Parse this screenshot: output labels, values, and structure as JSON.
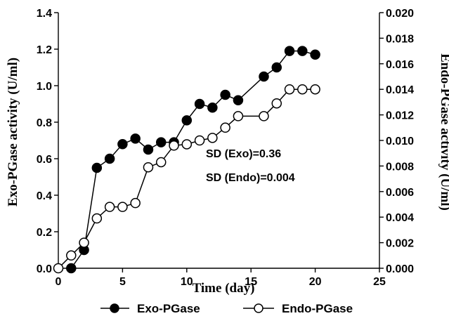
{
  "chart_data": {
    "type": "line",
    "xlabel": "Time (day)",
    "ylabel": "Exo-PGase activity (U/ml)",
    "y2label": "Endo-PGase activity (U/ml)",
    "xlim": [
      0,
      25
    ],
    "ylim": [
      0.0,
      1.4
    ],
    "y2lim": [
      0.0,
      0.02
    ],
    "x_ticks": [
      "0",
      "5",
      "10",
      "15",
      "20",
      "25"
    ],
    "y_ticks": [
      "0.0",
      "0.2",
      "0.4",
      "0.6",
      "0.8",
      "1.0",
      "1.2",
      "1.4"
    ],
    "y2_ticks": [
      "0.000",
      "0.002",
      "0.004",
      "0.006",
      "0.008",
      "0.010",
      "0.012",
      "0.014",
      "0.016",
      "0.018",
      "0.020"
    ],
    "grid": false,
    "legend_position": "bottom",
    "annotations": [
      "SD (Exo)=0.36",
      "SD (Endo)=0.004"
    ],
    "series": [
      {
        "name": "Exo-PGase",
        "axis": "left",
        "marker": "filled-circle",
        "color": "#000000",
        "points": [
          [
            1,
            0.0
          ],
          [
            2,
            0.1
          ],
          [
            3,
            0.55
          ],
          [
            4,
            0.6
          ],
          [
            5,
            0.68
          ],
          [
            6,
            0.71
          ],
          [
            7,
            0.65
          ],
          [
            8,
            0.69
          ],
          [
            9,
            0.69
          ],
          [
            10,
            0.81
          ],
          [
            11,
            0.9
          ],
          [
            12,
            0.88
          ],
          [
            13,
            0.95
          ],
          [
            14,
            0.92
          ],
          [
            16,
            1.05
          ],
          [
            17,
            1.1
          ],
          [
            18,
            1.19
          ],
          [
            19,
            1.19
          ],
          [
            20,
            1.17
          ]
        ]
      },
      {
        "name": "Endo-PGase",
        "axis": "right",
        "marker": "open-circle",
        "color": "#000000",
        "points": [
          [
            0,
            0.0
          ],
          [
            1,
            0.001
          ],
          [
            2,
            0.002
          ],
          [
            3,
            0.0039
          ],
          [
            4,
            0.0048
          ],
          [
            5,
            0.0048
          ],
          [
            6,
            0.0051
          ],
          [
            7,
            0.0079
          ],
          [
            8,
            0.0083
          ],
          [
            9,
            0.0096
          ],
          [
            10,
            0.0097
          ],
          [
            11,
            0.01
          ],
          [
            12,
            0.0102
          ],
          [
            13,
            0.011
          ],
          [
            14,
            0.0119
          ],
          [
            16,
            0.0119
          ],
          [
            17,
            0.0129
          ],
          [
            18,
            0.014
          ],
          [
            19,
            0.014
          ],
          [
            20,
            0.014
          ]
        ]
      }
    ]
  }
}
